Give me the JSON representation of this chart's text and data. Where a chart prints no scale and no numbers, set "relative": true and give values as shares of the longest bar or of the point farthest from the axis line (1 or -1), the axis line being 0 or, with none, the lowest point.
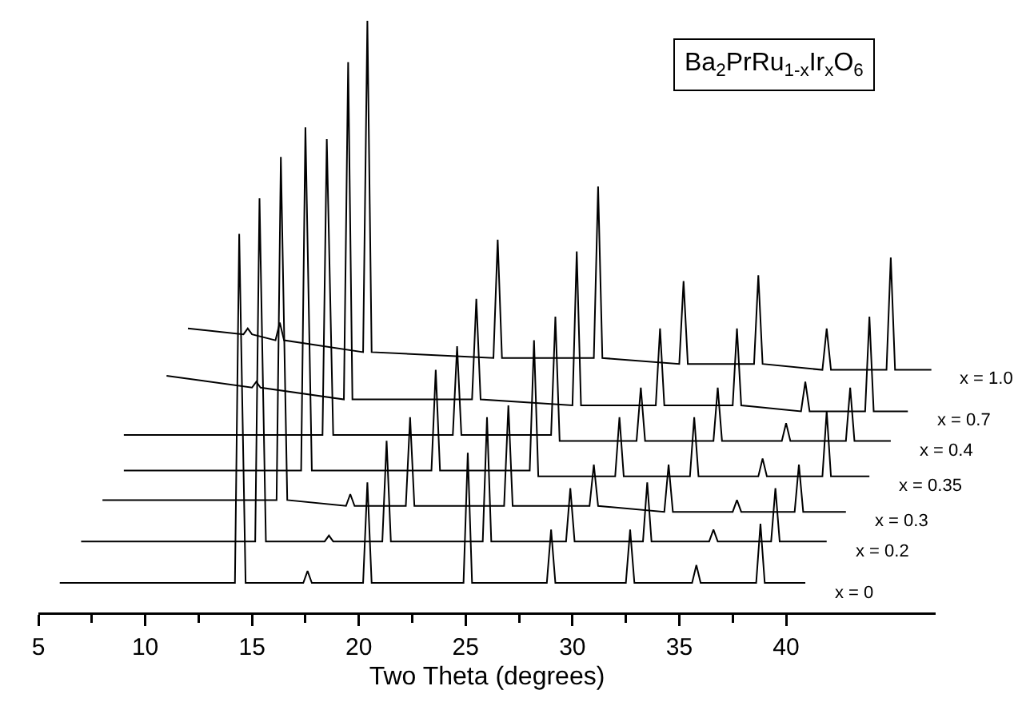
{
  "chart_data": {
    "type": "line",
    "relative": true,
    "xlabel": "Two Theta (degrees)",
    "annotations": [
      "Ba$_{2}$PrRu$_{1-x}$Ir$_{x}$O$_{6}$"
    ],
    "xlim": [
      5,
      47
    ],
    "xticks": [
      5,
      {
        "value": 7.5,
        "label": null
      },
      10,
      {
        "value": 12.5,
        "label": null
      },
      15,
      {
        "value": 17.5,
        "label": null
      },
      20,
      {
        "value": 22.5,
        "label": null
      },
      25,
      {
        "value": 27.5,
        "label": null
      },
      30,
      {
        "value": 32.5,
        "label": null
      },
      35,
      {
        "value": 37.5,
        "label": null
      },
      40
    ],
    "grid": false,
    "legend": false,
    "marker": "none",
    "line_style": "solid",
    "series": [
      {
        "name": "x = 0",
        "color": "#000000",
        "x": [
          6.0,
          14.2,
          14.4,
          14.7,
          17.4,
          17.6,
          17.8,
          20.2,
          20.4,
          20.6,
          24.9,
          25.1,
          25.3,
          28.8,
          29.0,
          29.2,
          32.5,
          32.7,
          32.9,
          35.6,
          35.8,
          36.0,
          38.6,
          38.8,
          39.0,
          40.9
        ],
        "values": [
          0.05,
          0.05,
          0.64,
          0.05,
          0.05,
          0.07,
          0.05,
          0.05,
          0.22,
          0.05,
          0.05,
          0.27,
          0.05,
          0.05,
          0.14,
          0.05,
          0.05,
          0.14,
          0.05,
          0.05,
          0.08,
          0.05,
          0.05,
          0.15,
          0.05,
          0.05
        ]
      },
      {
        "name": "x = 0.2",
        "color": "#000000",
        "x": [
          7.0,
          15.15,
          15.35,
          15.65,
          18.4,
          18.6,
          18.8,
          21.1,
          21.3,
          21.5,
          25.8,
          26.0,
          26.2,
          29.7,
          29.9,
          30.1,
          33.3,
          33.5,
          33.7,
          36.4,
          36.6,
          36.8,
          39.3,
          39.5,
          39.7,
          41.9
        ],
        "values": [
          0.12,
          0.12,
          0.7,
          0.12,
          0.12,
          0.13,
          0.12,
          0.12,
          0.29,
          0.12,
          0.12,
          0.33,
          0.12,
          0.12,
          0.21,
          0.12,
          0.12,
          0.22,
          0.12,
          0.12,
          0.14,
          0.12,
          0.12,
          0.21,
          0.12,
          0.12
        ]
      },
      {
        "name": "x = 0.3",
        "color": "#000000",
        "x": [
          8.0,
          16.15,
          16.35,
          16.65,
          19.4,
          19.6,
          19.8,
          22.2,
          22.4,
          22.6,
          26.8,
          27.0,
          27.2,
          30.8,
          31.0,
          31.2,
          34.3,
          34.5,
          34.7,
          37.5,
          37.7,
          37.9,
          40.4,
          40.6,
          40.8,
          42.8
        ],
        "values": [
          0.19,
          0.19,
          0.77,
          0.19,
          0.18,
          0.2,
          0.18,
          0.18,
          0.33,
          0.18,
          0.18,
          0.35,
          0.18,
          0.18,
          0.25,
          0.18,
          0.17,
          0.25,
          0.17,
          0.17,
          0.19,
          0.17,
          0.17,
          0.25,
          0.17,
          0.17
        ]
      },
      {
        "name": "x = 0.35",
        "color": "#000000",
        "x": [
          9.0,
          17.3,
          17.5,
          17.8,
          23.4,
          23.6,
          23.8,
          28.0,
          28.2,
          28.4,
          32.0,
          32.2,
          32.4,
          35.5,
          35.7,
          35.9,
          38.7,
          38.9,
          39.1,
          41.7,
          41.9,
          42.1,
          43.9
        ],
        "values": [
          0.24,
          0.24,
          0.82,
          0.24,
          0.24,
          0.41,
          0.24,
          0.24,
          0.46,
          0.23,
          0.23,
          0.33,
          0.23,
          0.23,
          0.33,
          0.23,
          0.23,
          0.26,
          0.23,
          0.23,
          0.34,
          0.23,
          0.23
        ]
      },
      {
        "name": "x = 0.4",
        "color": "#000000",
        "x": [
          9.0,
          18.3,
          18.5,
          18.8,
          24.4,
          24.6,
          24.8,
          29.0,
          29.2,
          29.4,
          33.0,
          33.2,
          33.4,
          36.6,
          36.8,
          37.0,
          39.8,
          40.0,
          40.2,
          42.8,
          43.0,
          43.2,
          44.9
        ],
        "values": [
          0.3,
          0.3,
          0.8,
          0.3,
          0.3,
          0.45,
          0.3,
          0.3,
          0.5,
          0.29,
          0.29,
          0.38,
          0.29,
          0.29,
          0.38,
          0.29,
          0.29,
          0.32,
          0.29,
          0.29,
          0.38,
          0.29,
          0.29
        ]
      },
      {
        "name": "x = 0.7",
        "color": "#000000",
        "x": [
          11.0,
          15.0,
          15.2,
          15.4,
          19.3,
          19.5,
          19.7,
          25.3,
          25.5,
          25.7,
          30.0,
          30.2,
          30.4,
          33.9,
          34.1,
          34.3,
          37.5,
          37.7,
          37.9,
          40.7,
          40.9,
          41.1,
          43.7,
          43.9,
          44.1,
          45.7
        ],
        "values": [
          0.4,
          0.38,
          0.39,
          0.38,
          0.36,
          0.93,
          0.36,
          0.36,
          0.53,
          0.36,
          0.35,
          0.61,
          0.35,
          0.35,
          0.48,
          0.35,
          0.35,
          0.48,
          0.35,
          0.34,
          0.39,
          0.34,
          0.34,
          0.5,
          0.34,
          0.34
        ]
      },
      {
        "name": "x = 1.0",
        "color": "#000000",
        "x": [
          12.0,
          14.6,
          14.8,
          15.0,
          16.1,
          16.3,
          16.5,
          20.2,
          20.4,
          20.6,
          26.3,
          26.5,
          26.7,
          31.0,
          31.2,
          31.4,
          35.0,
          35.2,
          35.4,
          38.5,
          38.7,
          38.9,
          41.7,
          41.9,
          42.1,
          44.7,
          44.9,
          45.1,
          46.8
        ],
        "values": [
          0.48,
          0.47,
          0.48,
          0.47,
          0.46,
          0.49,
          0.46,
          0.44,
          1.0,
          0.44,
          0.43,
          0.63,
          0.43,
          0.43,
          0.72,
          0.43,
          0.42,
          0.56,
          0.42,
          0.42,
          0.57,
          0.42,
          0.41,
          0.48,
          0.41,
          0.41,
          0.6,
          0.41,
          0.41
        ]
      }
    ]
  }
}
